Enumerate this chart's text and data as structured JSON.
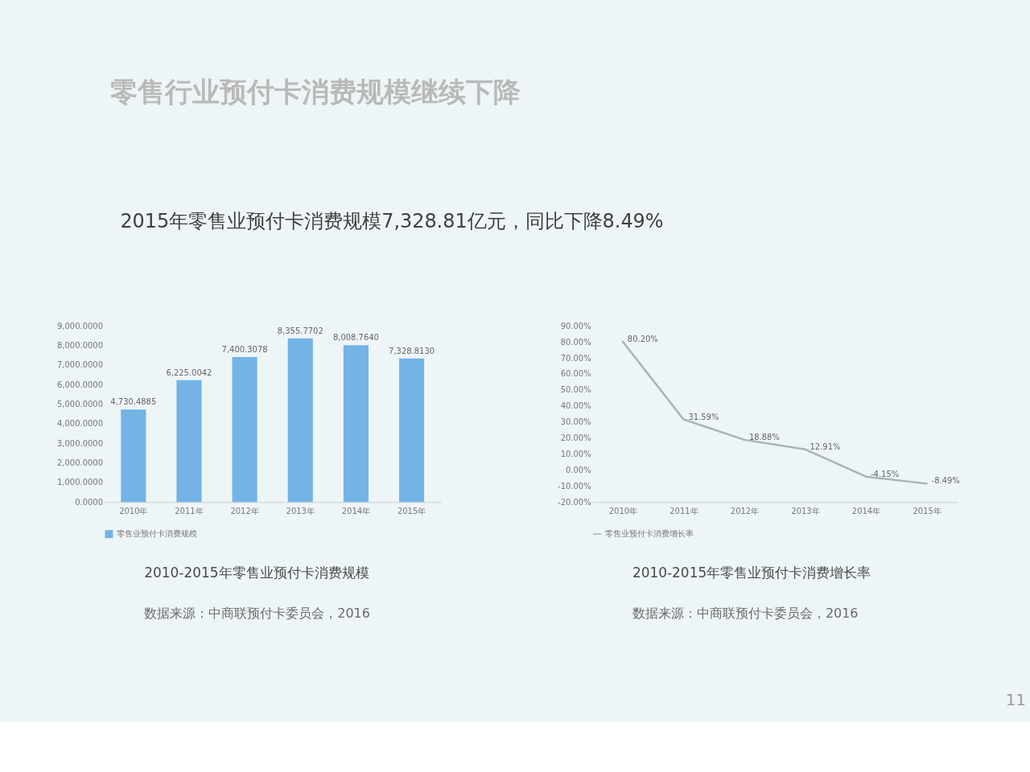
{
  "chart_data": [
    {
      "type": "other",
      "title": "零售行业预付卡消费规模继续下降",
      "subtitle": "2015年零售业预付卡消费规模7,328.81亿元，同比下降8.49%",
      "annotations": [
        "11"
      ]
    },
    {
      "type": "bar",
      "title": "2010-2015年零售业预付卡消费规模",
      "categories": [
        "2010年",
        "2011年",
        "2012年",
        "2013年",
        "2014年",
        "2015年"
      ],
      "series": [
        {
          "name": "零售业预付卡消费规模",
          "color": "#73b3e6",
          "values": [
            4730.4885,
            6225.0042,
            7400.3078,
            8355.7702,
            8008.764,
            7328.813
          ],
          "value_labels": [
            "4,730.4885",
            "6,225.0042",
            "7,400.3078",
            "8,355.7702",
            "8,008.7640",
            "7,328.8130"
          ]
        }
      ],
      "ylim": [
        0,
        9000
      ],
      "yticks": [
        {
          "value": 0,
          "label": "0.0000"
        },
        {
          "value": 1000,
          "label": "1,000.0000"
        },
        {
          "value": 2000,
          "label": "2,000.0000"
        },
        {
          "value": 3000,
          "label": "3,000.0000"
        },
        {
          "value": 4000,
          "label": "4,000.0000"
        },
        {
          "value": 5000,
          "label": "5,000.0000"
        },
        {
          "value": 6000,
          "label": "6,000.0000"
        },
        {
          "value": 7000,
          "label": "7,000.0000"
        },
        {
          "value": 8000,
          "label": "8,000.0000"
        },
        {
          "value": 9000,
          "label": "9,000.0000"
        }
      ],
      "legend": "bottom",
      "annotations": [
        "数据来源：中商联预付卡委员会，2016"
      ]
    },
    {
      "type": "line",
      "title": "2010-2015年零售业预付卡消费增长率",
      "categories": [
        "2010年",
        "2011年",
        "2012年",
        "2013年",
        "2014年",
        "2015年"
      ],
      "series": [
        {
          "name": "零售业预付卡消费增长率",
          "color": "#a8b4b6",
          "values": [
            80.2,
            31.59,
            18.88,
            12.91,
            -4.15,
            -8.49
          ],
          "value_labels": [
            "80.20%",
            "31.59%",
            "18.88%",
            "12.91%",
            "-4.15%",
            "-8.49%"
          ]
        }
      ],
      "ylim": [
        -20,
        90
      ],
      "yticks": [
        {
          "value": -20,
          "label": "-20.00%"
        },
        {
          "value": -10,
          "label": "-10.00%"
        },
        {
          "value": 0,
          "label": "0.00%"
        },
        {
          "value": 10,
          "label": "10.00%"
        },
        {
          "value": 20,
          "label": "20.00%"
        },
        {
          "value": 30,
          "label": "30.00%"
        },
        {
          "value": 40,
          "label": "40.00%"
        },
        {
          "value": 50,
          "label": "50.00%"
        },
        {
          "value": 60,
          "label": "60.00%"
        },
        {
          "value": 70,
          "label": "70.00%"
        },
        {
          "value": 80,
          "label": "80.00%"
        },
        {
          "value": 90,
          "label": "90.00%"
        }
      ],
      "legend": "bottom",
      "annotations": [
        "数据来源：中商联预付卡委员会，2016"
      ]
    }
  ]
}
